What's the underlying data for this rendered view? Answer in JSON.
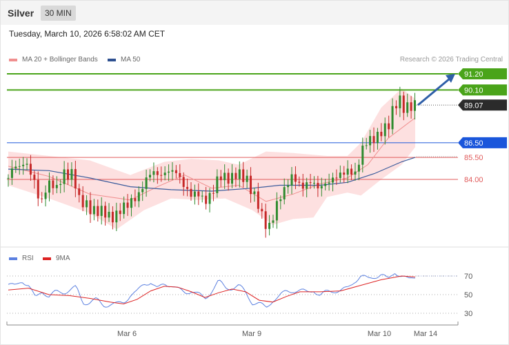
{
  "header": {
    "instrument": "Silver",
    "timeframe": "30 MIN"
  },
  "timestamp": "Tuesday, March 10, 2026 6:58:02 AM CET",
  "credit": "Research © 2026 Trading Central",
  "colors": {
    "support_green": "#4aa41a",
    "pivot_blue": "#1a56db",
    "resistance_red": "#e05a5a",
    "band_fill": "#fcd5d5",
    "ma50": "#3a5b9c",
    "rsi": "#5b80e0",
    "rsi_ma": "#dd2222",
    "arrow": "#2f5fa8"
  },
  "chart_data": [
    {
      "type": "candlestick",
      "legend": [
        "MA 20 + Bollinger Bands",
        "MA 50"
      ],
      "levels": [
        {
          "value": 91.2,
          "label": "91.20",
          "style": "green-tag"
        },
        {
          "value": 90.1,
          "label": "90.10",
          "style": "green-tag"
        },
        {
          "value": 89.07,
          "label": "89.07",
          "style": "last-price"
        },
        {
          "value": 86.5,
          "label": "86.50",
          "style": "blue-tag"
        },
        {
          "value": 85.5,
          "label": "85.50",
          "style": "red-text"
        },
        {
          "value": 84.0,
          "label": "84.00",
          "style": "red-text"
        }
      ],
      "x_labels": [
        "Mar 6",
        "Mar 9",
        "Mar 10",
        "Mar 14"
      ],
      "ylim": [
        79.3,
        92.5
      ],
      "close_path": [
        [
          0,
          84.1
        ],
        [
          8,
          85.0
        ],
        [
          16,
          84.8
        ],
        [
          24,
          85.2
        ],
        [
          32,
          84.6
        ],
        [
          40,
          83.6
        ],
        [
          48,
          82.2
        ],
        [
          56,
          83.5
        ],
        [
          64,
          83.8
        ],
        [
          72,
          83.3
        ],
        [
          80,
          84.4
        ],
        [
          88,
          84.3
        ],
        [
          96,
          84.4
        ],
        [
          104,
          82.6
        ],
        [
          112,
          82.4
        ],
        [
          120,
          82.0
        ],
        [
          128,
          81.8
        ],
        [
          136,
          81.9
        ],
        [
          144,
          81.7
        ],
        [
          152,
          81.3
        ],
        [
          160,
          81.6
        ],
        [
          168,
          82.1
        ],
        [
          176,
          82.3
        ],
        [
          184,
          82.6
        ],
        [
          192,
          82.9
        ],
        [
          200,
          83.7
        ],
        [
          208,
          84.4
        ],
        [
          216,
          84.5
        ],
        [
          224,
          84.2
        ],
        [
          232,
          84.5
        ],
        [
          240,
          84.6
        ],
        [
          248,
          84.5
        ],
        [
          256,
          83.8
        ],
        [
          264,
          83.2
        ],
        [
          272,
          82.9
        ],
        [
          280,
          83.1
        ],
        [
          288,
          82.5
        ],
        [
          296,
          82.7
        ],
        [
          304,
          83.5
        ],
        [
          312,
          84.3
        ],
        [
          320,
          84.1
        ],
        [
          328,
          84.0
        ],
        [
          336,
          84.4
        ],
        [
          344,
          84.3
        ],
        [
          352,
          83.9
        ],
        [
          360,
          83.1
        ],
        [
          368,
          82.4
        ],
        [
          376,
          81.2
        ],
        [
          384,
          80.6
        ],
        [
          392,
          81.7
        ],
        [
          400,
          82.8
        ],
        [
          408,
          83.3
        ],
        [
          416,
          84.2
        ],
        [
          424,
          84.0
        ],
        [
          432,
          83.4
        ],
        [
          440,
          83.7
        ],
        [
          448,
          83.9
        ],
        [
          456,
          83.4
        ],
        [
          464,
          83.6
        ],
        [
          472,
          83.8
        ],
        [
          480,
          84.1
        ],
        [
          488,
          84.3
        ],
        [
          496,
          84.5
        ],
        [
          504,
          84.6
        ],
        [
          512,
          84.3
        ],
        [
          520,
          85.8
        ],
        [
          528,
          86.6
        ],
        [
          536,
          86.7
        ],
        [
          544,
          86.9
        ],
        [
          552,
          87.4
        ],
        [
          560,
          87.6
        ],
        [
          568,
          88.9
        ],
        [
          576,
          89.5
        ],
        [
          584,
          88.8
        ],
        [
          592,
          89.0
        ],
        [
          600,
          89.07
        ]
      ],
      "ma20_path": [
        [
          0,
          84.9
        ],
        [
          60,
          84.2
        ],
        [
          120,
          83.0
        ],
        [
          180,
          82.6
        ],
        [
          220,
          83.5
        ],
        [
          260,
          84.3
        ],
        [
          300,
          83.4
        ],
        [
          340,
          83.6
        ],
        [
          380,
          82.5
        ],
        [
          420,
          83.0
        ],
        [
          460,
          83.7
        ],
        [
          500,
          84.1
        ],
        [
          530,
          85.0
        ],
        [
          560,
          86.8
        ],
        [
          600,
          88.2
        ]
      ],
      "ma50_path": [
        [
          0,
          84.7
        ],
        [
          60,
          84.6
        ],
        [
          120,
          84.1
        ],
        [
          180,
          83.5
        ],
        [
          240,
          83.3
        ],
        [
          300,
          83.2
        ],
        [
          360,
          83.4
        ],
        [
          400,
          83.6
        ],
        [
          460,
          83.6
        ],
        [
          500,
          83.8
        ],
        [
          540,
          84.4
        ],
        [
          580,
          85.2
        ],
        [
          600,
          85.5
        ]
      ],
      "band_upper": [
        [
          0,
          85.9
        ],
        [
          60,
          85.6
        ],
        [
          120,
          85.3
        ],
        [
          180,
          84.3
        ],
        [
          230,
          85.2
        ],
        [
          270,
          85.4
        ],
        [
          310,
          85.3
        ],
        [
          340,
          85.0
        ],
        [
          380,
          85.9
        ],
        [
          420,
          85.8
        ],
        [
          470,
          85.6
        ],
        [
          500,
          85.6
        ],
        [
          520,
          86.5
        ],
        [
          550,
          88.9
        ],
        [
          580,
          90.2
        ],
        [
          600,
          89.5
        ]
      ],
      "band_lower": [
        [
          0,
          83.6
        ],
        [
          60,
          82.7
        ],
        [
          120,
          81.7
        ],
        [
          160,
          80.6
        ],
        [
          200,
          81.9
        ],
        [
          240,
          82.7
        ],
        [
          280,
          82.6
        ],
        [
          320,
          82.7
        ],
        [
          360,
          81.9
        ],
        [
          390,
          80.9
        ],
        [
          420,
          81.3
        ],
        [
          450,
          81.4
        ],
        [
          470,
          82.8
        ],
        [
          500,
          83.1
        ],
        [
          520,
          82.9
        ],
        [
          550,
          84.0
        ],
        [
          580,
          85.0
        ],
        [
          600,
          86.2
        ]
      ]
    },
    {
      "type": "line",
      "legend": [
        "RSI",
        "9MA"
      ],
      "yticks": [
        70,
        50,
        30
      ],
      "ylim": [
        20,
        80
      ],
      "rsi_path": [
        [
          0,
          61
        ],
        [
          10,
          58
        ],
        [
          20,
          66
        ],
        [
          30,
          60
        ],
        [
          40,
          45
        ],
        [
          50,
          55
        ],
        [
          60,
          48
        ],
        [
          70,
          52
        ],
        [
          80,
          53
        ],
        [
          90,
          55
        ],
        [
          100,
          57
        ],
        [
          110,
          42
        ],
        [
          120,
          42
        ],
        [
          130,
          44
        ],
        [
          140,
          39
        ],
        [
          150,
          40
        ],
        [
          160,
          39
        ],
        [
          170,
          42
        ],
        [
          180,
          50
        ],
        [
          190,
          52
        ],
        [
          200,
          62
        ],
        [
          210,
          64
        ],
        [
          220,
          55
        ],
        [
          230,
          62
        ],
        [
          240,
          61
        ],
        [
          250,
          55
        ],
        [
          260,
          52
        ],
        [
          270,
          55
        ],
        [
          280,
          50
        ],
        [
          290,
          45
        ],
        [
          300,
          55
        ],
        [
          310,
          64
        ],
        [
          320,
          57
        ],
        [
          330,
          58
        ],
        [
          340,
          59
        ],
        [
          350,
          52
        ],
        [
          360,
          42
        ],
        [
          370,
          40
        ],
        [
          380,
          35
        ],
        [
          390,
          45
        ],
        [
          400,
          48
        ],
        [
          410,
          53
        ],
        [
          420,
          55
        ],
        [
          430,
          54
        ],
        [
          440,
          52
        ],
        [
          450,
          56
        ],
        [
          460,
          48
        ],
        [
          470,
          53
        ],
        [
          480,
          55
        ],
        [
          490,
          54
        ],
        [
          500,
          56
        ],
        [
          510,
          65
        ],
        [
          520,
          70
        ],
        [
          530,
          66
        ],
        [
          540,
          70
        ],
        [
          550,
          72
        ],
        [
          560,
          65
        ],
        [
          570,
          75
        ],
        [
          580,
          70
        ],
        [
          590,
          65
        ],
        [
          600,
          70
        ]
      ],
      "rsi_ma_path": [
        [
          0,
          55
        ],
        [
          30,
          57
        ],
        [
          60,
          50
        ],
        [
          90,
          49
        ],
        [
          120,
          46
        ],
        [
          150,
          42
        ],
        [
          170,
          40
        ],
        [
          190,
          45
        ],
        [
          210,
          54
        ],
        [
          230,
          59
        ],
        [
          250,
          58
        ],
        [
          270,
          53
        ],
        [
          290,
          47
        ],
        [
          310,
          52
        ],
        [
          330,
          56
        ],
        [
          350,
          53
        ],
        [
          370,
          44
        ],
        [
          390,
          42
        ],
        [
          410,
          48
        ],
        [
          430,
          53
        ],
        [
          460,
          53
        ],
        [
          490,
          54
        ],
        [
          520,
          60
        ],
        [
          550,
          66
        ],
        [
          580,
          70
        ],
        [
          600,
          69
        ]
      ]
    }
  ]
}
